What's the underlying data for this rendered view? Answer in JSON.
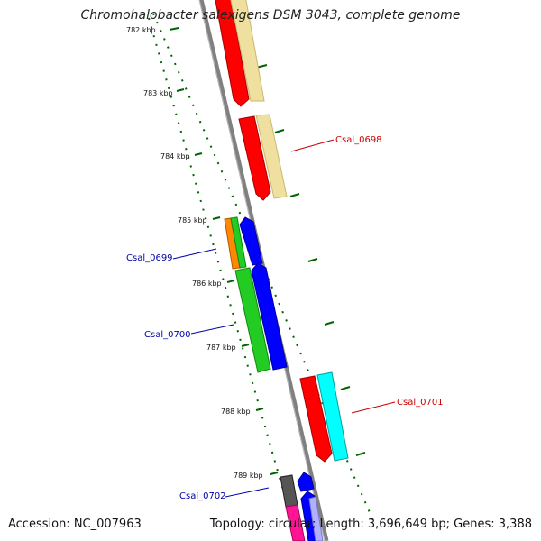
{
  "title": "Chromohalobacter salexigens DSM 3043, complete genome",
  "accession": "Accession: NC_007963",
  "summary": "Topology: circular; Length: 3,696,649 bp; Genes: 3,388",
  "ticks": [
    "782 kbp",
    "783 kbp",
    "784 kbp",
    "785 kbp",
    "786 kbp",
    "787 kbp",
    "788 kbp",
    "789 kbp"
  ],
  "gene_labels": [
    {
      "text": "Csal_0698",
      "color": "#cc0000"
    },
    {
      "text": "Csal_0699",
      "color": "#0000aa"
    },
    {
      "text": "Csal_0700",
      "color": "#0000aa"
    },
    {
      "text": "Csal_0701",
      "color": "#cc0000"
    },
    {
      "text": "Csal_0702",
      "color": "#0000aa"
    }
  ],
  "colors": {
    "backbone": "#808080",
    "forward_cds": "#ff0000",
    "forward_feature": "#f0e0a0",
    "reverse_cds": "#0000ff",
    "reverse_feature": "#22cc22",
    "orange_feature": "#ff8800",
    "cyan_feature": "#00ffff",
    "magenta_feature": "#ff1493",
    "gray_feature": "#555555",
    "lavender_feature": "#b0b0ff",
    "tick_green": "#006600"
  }
}
